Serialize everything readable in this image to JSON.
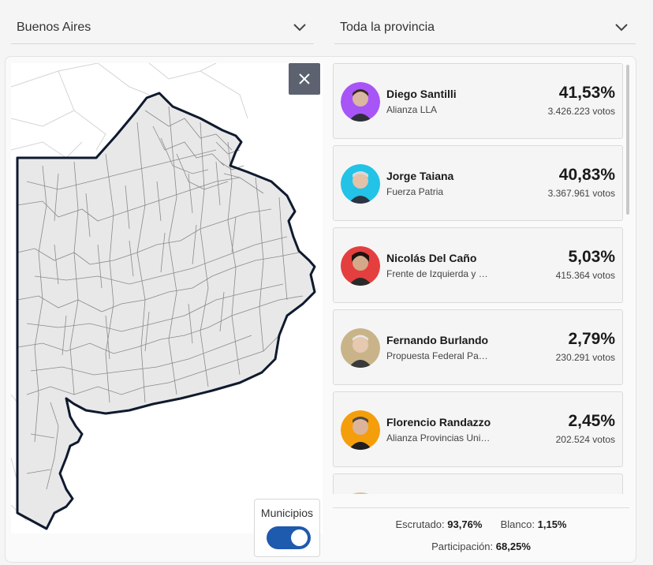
{
  "filters": {
    "region": "Buenos Aires",
    "scope": "Toda la provincia"
  },
  "map": {
    "toggle_label": "Municipios",
    "toggle_on": true
  },
  "candidates": [
    {
      "name": "Diego Santilli",
      "party": "Alianza LLA",
      "pct": "41,53%",
      "votes": "3.426.223 votos",
      "color": "#a855f7"
    },
    {
      "name": "Jorge Taiana",
      "party": "Fuerza Patria",
      "pct": "40,83%",
      "votes": "3.367.961 votos",
      "color": "#22c3e6"
    },
    {
      "name": "Nicolás Del Caño",
      "party": "Frente de Izquierda y de Trabajadores",
      "pct": "5,03%",
      "votes": "415.364 votos",
      "color": "#e53e3e"
    },
    {
      "name": "Fernando Burlando",
      "party": "Propuesta Federal Para el Cambio",
      "pct": "2,79%",
      "votes": "230.291 votos",
      "color": "#c9b48a"
    },
    {
      "name": "Florencio Randazzo",
      "party": "Alianza Provincias Unidas",
      "pct": "2,45%",
      "votes": "202.524 votos",
      "color": "#f59e0b"
    }
  ],
  "stats": {
    "escrutado_label": "Escrutado:",
    "escrutado_value": "93,76%",
    "blanco_label": "Blanco:",
    "blanco_value": "1,15%",
    "participacion_label": "Participación:",
    "participacion_value": "68,25%"
  }
}
